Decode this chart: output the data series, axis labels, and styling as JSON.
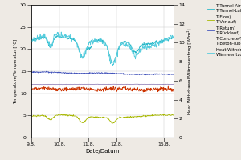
{
  "xlabel": "Date/Datum",
  "ylabel_left": "Temperature/Temperatur [°C]",
  "ylabel_right": "Heat Withdrawal/Wärmeentzug [W/m²]",
  "xlim": [
    0,
    7.5
  ],
  "ylim_left": [
    0,
    30
  ],
  "ylim_right": [
    0,
    14
  ],
  "xtick_labels": [
    "9.8.",
    "10.8.",
    "11.8.",
    "12.8.",
    "15.8."
  ],
  "xtick_positions": [
    0,
    1.5,
    3.0,
    4.5,
    7.0
  ],
  "ytick_left": [
    0,
    5,
    10,
    15,
    20,
    25,
    30
  ],
  "ytick_right": [
    0,
    2,
    4,
    6,
    8,
    10,
    12,
    14
  ],
  "color_tunnel": "#29B8C8",
  "color_flow": "#A8B800",
  "color_return": "#4455BB",
  "color_concrete": "#9988BB",
  "color_concrete_tub": "#CC3300",
  "color_heat": "#55CCDD",
  "bg_color": "#eeeae4",
  "plot_bg": "#ffffff",
  "grid_color": "#cccccc",
  "legend_items": [
    [
      "T(Tunnel-Air)",
      "T(Tunnel-Luft)",
      "#29B8C8"
    ],
    [
      "T(Flow)",
      "T(Vorlauf)",
      "#A8B800"
    ],
    [
      "T(Return)",
      "T(Rücklauf)",
      "#4455BB"
    ],
    [
      "T(Concrete-Tübbing)",
      "T(Beton-Tübbing)",
      "#CC3300"
    ],
    [
      "Heat Withdrawal",
      "Wärmeentzug",
      "#55CCDD"
    ]
  ]
}
